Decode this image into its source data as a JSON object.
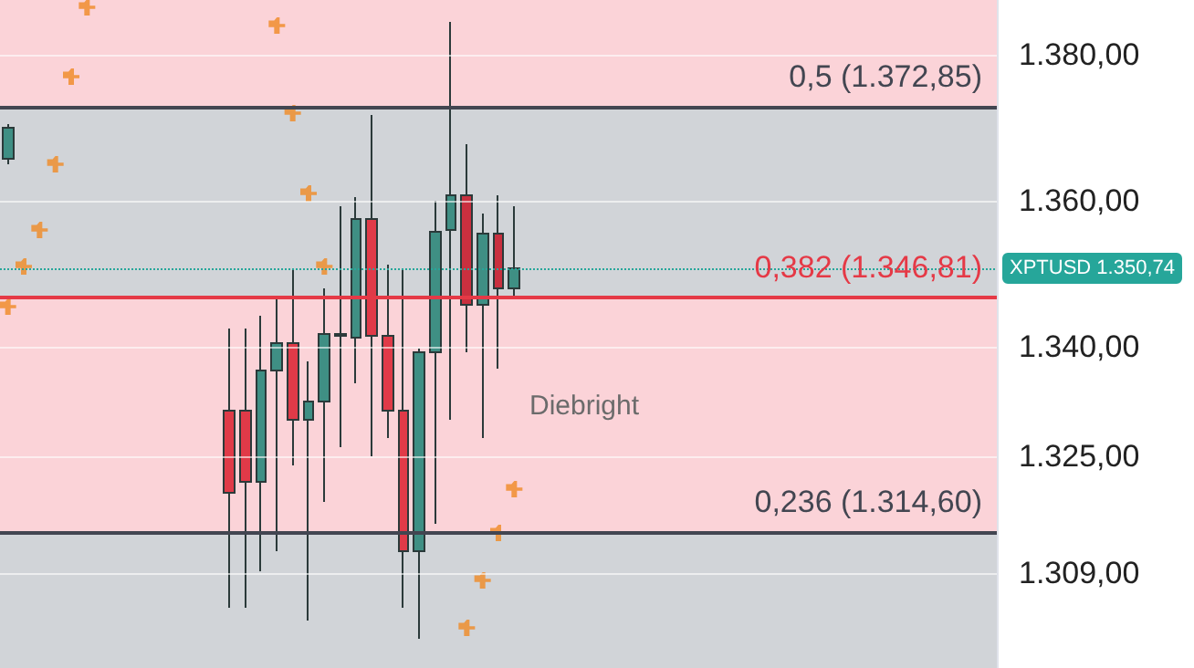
{
  "chart_data": {
    "type": "candlestick",
    "categories": [
      null,
      null,
      null,
      null,
      null,
      null,
      null,
      null,
      null,
      null,
      null,
      null,
      null,
      null,
      null,
      null,
      null,
      null,
      null,
      null,
      null,
      null,
      null,
      null,
      null,
      null,
      null,
      null,
      null,
      null,
      null,
      null,
      null,
      null,
      null,
      null,
      null,
      null,
      null,
      null,
      null,
      null,
      null,
      null,
      null,
      null,
      null,
      null,
      null,
      null,
      null,
      null,
      null,
      null,
      null,
      null,
      null,
      null,
      null,
      null,
      null,
      null,
      null
    ],
    "ohlc": [
      [
        1365.75,
        1370.5,
        1365,
        1370
      ],
      null,
      null,
      null,
      null,
      null,
      null,
      null,
      null,
      null,
      null,
      null,
      null,
      null,
      [
        1331.25,
        1342.5,
        1304.25,
        1320
      ],
      [
        1331.25,
        1342.5,
        1304.25,
        1321.5
      ],
      [
        1321.5,
        1344.25,
        1309.25,
        1336.75
      ],
      [
        1336.75,
        1347,
        1312,
        1340.5
      ],
      [
        1340.5,
        1350.5,
        1323.75,
        1330
      ],
      [
        1330,
        1338,
        1302.5,
        1332.5
      ],
      [
        1332.5,
        1348,
        1318.75,
        1341.75
      ],
      [
        1341.75,
        1359.25,
        1326.25,
        1341.5
      ],
      [
        1341.25,
        1360.5,
        1335,
        1357.5
      ],
      [
        1357.5,
        1371.75,
        1325,
        1341.5
      ],
      [
        1341.5,
        1351.25,
        1327.5,
        1331.25
      ],
      [
        1331.25,
        1350.5,
        1304.25,
        1312
      ],
      [
        1312,
        1339.75,
        1300,
        1339.25
      ],
      [
        1339.25,
        1360,
        1315.75,
        1355.75
      ],
      [
        1356,
        1384.5,
        1330,
        1360.75
      ],
      [
        1360.75,
        1367.75,
        1339.25,
        1345.75
      ],
      [
        1345.75,
        1358.25,
        1327.5,
        1355.5
      ],
      [
        1355.5,
        1360.75,
        1337,
        1348
      ],
      [
        1348,
        1359.25,
        1347,
        1350.74
      ],
      null,
      null,
      null,
      null,
      null,
      null,
      null,
      null,
      null,
      null,
      null,
      null,
      null,
      null,
      null,
      null,
      null,
      null,
      null,
      null,
      null,
      null,
      null,
      null,
      null,
      null,
      null,
      null,
      null,
      null
    ],
    "colors": [
      "#3f8f84",
      null,
      null,
      null,
      null,
      null,
      null,
      null,
      null,
      null,
      null,
      null,
      null,
      null,
      "#e03a48",
      "#e03a48",
      "#3f8f84",
      "#3f8f84",
      "#e03a48",
      "#3f8f84",
      "#3f8f84",
      "#3f8f84",
      "#3f8f84",
      "#e03a48",
      "#e03a48",
      "#e03a48",
      "#3f8f84",
      "#3f8f84",
      "#3f8f84",
      "#c9303f",
      "#3f8f84",
      "#c9303f",
      "#3f8f84",
      null,
      null,
      null,
      null,
      null,
      null,
      null,
      null,
      null,
      null,
      null,
      null,
      null,
      null,
      null,
      null,
      null,
      null,
      null,
      null,
      null,
      null,
      null,
      null,
      null,
      null,
      null,
      null,
      null,
      null
    ],
    "series": [
      {
        "type": "scatter",
        "color": "#f08a24",
        "values": [
          1345.5,
          1351,
          1356,
          1365,
          1377,
          1386.5,
          null,
          null,
          null,
          null,
          null,
          null,
          null,
          null,
          null,
          null,
          null,
          1384,
          1372,
          1361,
          1351,
          null,
          null,
          null,
          null,
          null,
          null,
          null,
          null,
          1301.5,
          1308,
          1314.5,
          1320.5,
          null,
          null,
          null,
          null,
          null,
          null,
          null,
          null,
          null,
          null,
          null,
          null,
          null,
          null,
          null,
          null,
          null,
          null,
          null,
          null,
          null,
          null,
          null,
          null,
          null,
          null,
          null,
          null,
          null,
          null
        ]
      }
    ],
    "marker": "cross",
    "ylim": [
      1296,
      1387.5
    ],
    "yticks": [
      {
        "value": 1380,
        "label": "1.380,00"
      },
      {
        "value": 1360,
        "label": "1.360,00"
      },
      {
        "value": 1340,
        "label": "1.340,00"
      },
      {
        "value": 1325,
        "label": "1.325,00"
      },
      {
        "value": 1309,
        "label": "1.309,00"
      }
    ],
    "tick_labels": "y",
    "grid": "y",
    "ref_lines": [
      {
        "axis": "y",
        "value": 1372.85,
        "label": "0,5 (1.372,85)",
        "color": "#434651"
      },
      {
        "axis": "y",
        "value": 1346.81,
        "label": "0,382 (1.346,81)",
        "color": "#e53946"
      },
      {
        "axis": "y",
        "value": 1314.6,
        "label": "0,236 (1.314,60)",
        "color": "#434651"
      },
      {
        "axis": "y",
        "value": 1350.74,
        "label": "XPTUSD 1.350,74",
        "color": "#26a69a",
        "line_style": "dotted"
      }
    ],
    "bands": [
      {
        "axis": "y",
        "from": 1372.85,
        "to": 1387.5,
        "color": "#fbd3d8"
      },
      {
        "axis": "y",
        "from": 1346.81,
        "to": 1372.85,
        "color": "#d1d4d8"
      },
      {
        "axis": "y",
        "from": 1314.6,
        "to": 1346.81,
        "color": "#fbd3d8"
      },
      {
        "axis": "y",
        "from": 1296,
        "to": 1314.6,
        "color": "#d1d4d8"
      }
    ],
    "annotations": [
      "Diebright"
    ]
  }
}
